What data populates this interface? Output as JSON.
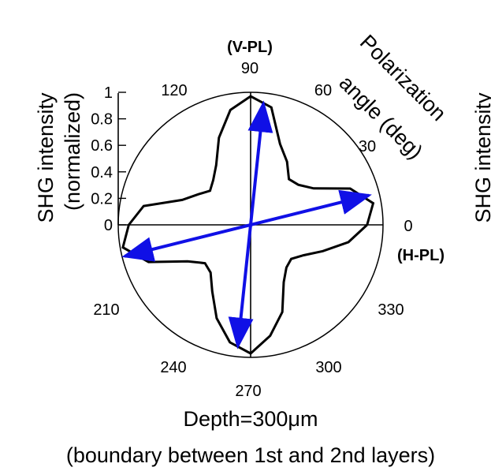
{
  "chart_data": {
    "type": "polar",
    "caption": {
      "line1": "Depth=300μm",
      "line2": "(boundary between 1st and 2nd layers)"
    },
    "radial_axis": {
      "title_line1": "SHG intensity",
      "title_line2": "(normalized)",
      "range": [
        0,
        1
      ],
      "ticks": [
        "0",
        "0.2",
        "0.4",
        "0.6",
        "0.8",
        "1"
      ]
    },
    "angular_axis": {
      "title_line1": "Polarization",
      "title_line2": "angle (deg)",
      "ticks": [
        "0",
        "30",
        "60",
        "90",
        "120",
        "210",
        "240",
        "270",
        "300",
        "330"
      ],
      "annotations": {
        "v_pl": "(V-PL)",
        "h_pl": "(H-PL)"
      }
    },
    "right_partial_label": "SHG intensity",
    "series": [
      {
        "color": "#000000",
        "points": [
          {
            "angle": 0,
            "r": 0.88
          },
          {
            "angle": 10,
            "r": 0.94
          },
          {
            "angle": 20,
            "r": 0.8
          },
          {
            "angle": 30,
            "r": 0.55
          },
          {
            "angle": 40,
            "r": 0.47
          },
          {
            "angle": 50,
            "r": 0.45
          },
          {
            "angle": 60,
            "r": 0.55
          },
          {
            "angle": 70,
            "r": 0.65
          },
          {
            "angle": 80,
            "r": 0.9
          },
          {
            "angle": 90,
            "r": 0.97
          },
          {
            "angle": 100,
            "r": 0.88
          },
          {
            "angle": 110,
            "r": 0.7
          },
          {
            "angle": 120,
            "r": 0.52
          },
          {
            "angle": 130,
            "r": 0.44
          },
          {
            "angle": 140,
            "r": 0.4
          },
          {
            "angle": 150,
            "r": 0.46
          },
          {
            "angle": 160,
            "r": 0.55
          },
          {
            "angle": 170,
            "r": 0.82
          },
          {
            "angle": 180,
            "r": 0.92
          },
          {
            "angle": 190,
            "r": 0.98
          },
          {
            "angle": 200,
            "r": 0.82
          },
          {
            "angle": 210,
            "r": 0.55
          },
          {
            "angle": 220,
            "r": 0.45
          },
          {
            "angle": 230,
            "r": 0.47
          },
          {
            "angle": 240,
            "r": 0.58
          },
          {
            "angle": 250,
            "r": 0.75
          },
          {
            "angle": 260,
            "r": 0.9
          },
          {
            "angle": 270,
            "r": 0.97
          },
          {
            "angle": 280,
            "r": 0.85
          },
          {
            "angle": 290,
            "r": 0.7
          },
          {
            "angle": 300,
            "r": 0.5
          },
          {
            "angle": 310,
            "r": 0.42
          },
          {
            "angle": 320,
            "r": 0.4
          },
          {
            "angle": 330,
            "r": 0.46
          },
          {
            "angle": 340,
            "r": 0.58
          },
          {
            "angle": 350,
            "r": 0.75
          }
        ]
      }
    ],
    "arrows": [
      {
        "color": "#1010e6",
        "from_angle": 194,
        "from_r": 0.98,
        "to_angle": 14,
        "to_r": 0.92
      },
      {
        "color": "#1010e6",
        "from_angle": 84,
        "from_r": 0.92,
        "to_angle": 264,
        "to_r": 0.92
      }
    ],
    "grid": false
  }
}
